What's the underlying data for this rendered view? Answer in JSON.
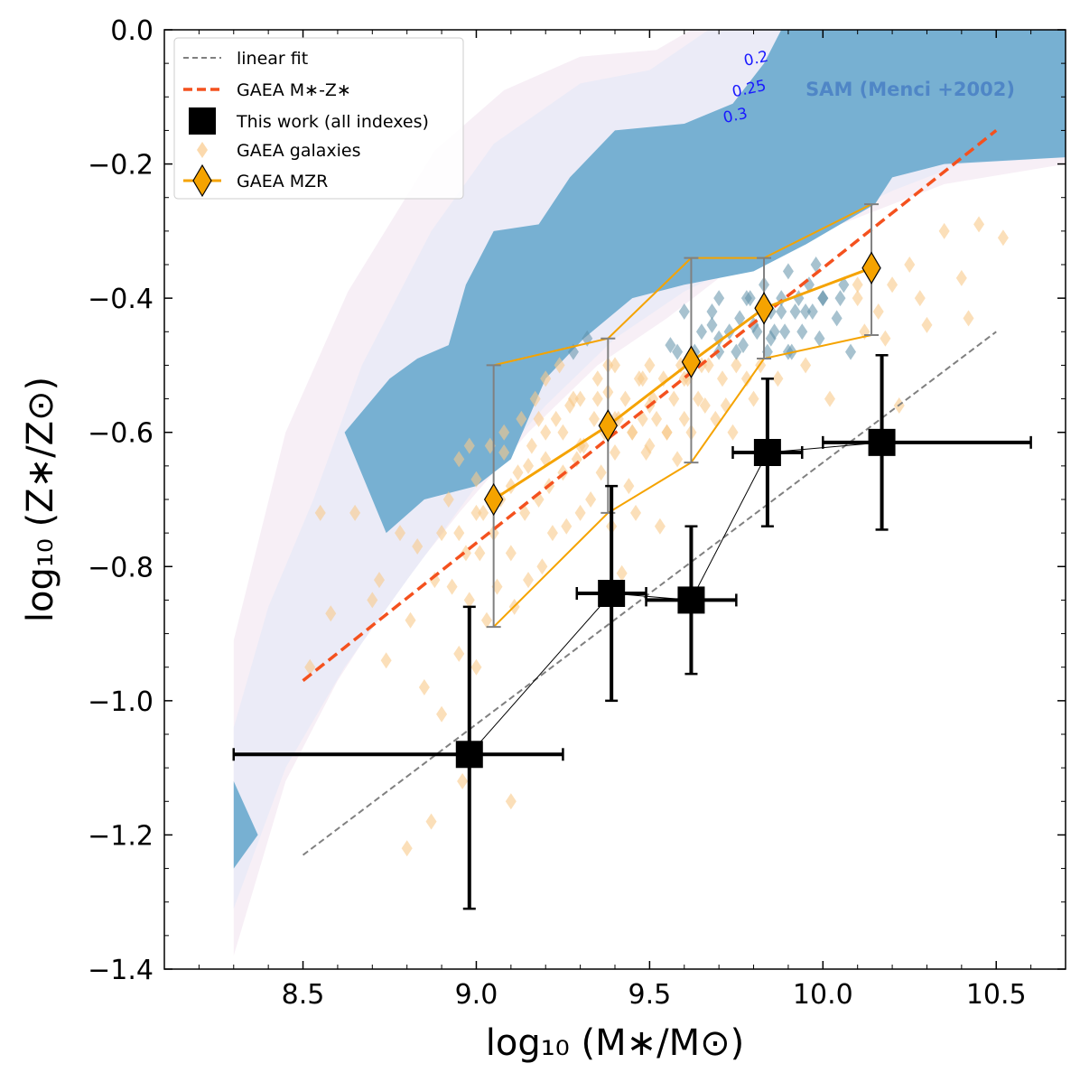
{
  "chart_data": {
    "type": "scatter",
    "xlabel": "log₁₀ (M∗/M⊙)",
    "ylabel": "log₁₀ (Z∗/Z⊙)",
    "xlim": [
      8.1,
      10.7
    ],
    "ylim": [
      -1.4,
      0.0
    ],
    "x_ticks": [
      8.5,
      9.0,
      9.5,
      10.0,
      10.5
    ],
    "x_tick_labels": [
      "8.5",
      "9.0",
      "9.5",
      "10.0",
      "10.5"
    ],
    "y_ticks": [
      0.0,
      -0.2,
      -0.4,
      -0.6,
      -0.8,
      -1.0,
      -1.2,
      -1.4
    ],
    "y_tick_labels": [
      "0.0",
      "−0.2",
      "−0.4",
      "−0.6",
      "−0.8",
      "−1.0",
      "−1.2",
      "−1.4"
    ],
    "legend": {
      "position": "top-left",
      "entries": [
        "linear fit",
        "GAEA M∗-Z∗",
        "This work (all indexes)",
        "GAEA galaxies",
        "GAEA MZR"
      ]
    },
    "sam_label": "SAM (Menci +2002)",
    "contour_labels": [
      {
        "text": "0.2",
        "x": 9.81,
        "y": -0.05
      },
      {
        "text": "0.25",
        "x": 9.79,
        "y": -0.095
      },
      {
        "text": "0.3",
        "x": 9.75,
        "y": -0.135
      }
    ],
    "sam_regions": [
      {
        "level": "outer",
        "color": "#f7eff6",
        "points": [
          [
            8.3,
            -1.38
          ],
          [
            8.3,
            -0.91
          ],
          [
            8.45,
            -0.6
          ],
          [
            8.63,
            -0.39
          ],
          [
            8.88,
            -0.18
          ],
          [
            9.08,
            -0.09
          ],
          [
            9.3,
            -0.04
          ],
          [
            9.52,
            -0.03
          ],
          [
            9.62,
            0.0
          ],
          [
            10.7,
            0.0
          ],
          [
            10.7,
            -0.2
          ],
          [
            10.35,
            -0.23
          ],
          [
            10.15,
            -0.27
          ],
          [
            9.95,
            -0.31
          ],
          [
            9.7,
            -0.37
          ],
          [
            9.55,
            -0.43
          ],
          [
            9.35,
            -0.5
          ],
          [
            9.15,
            -0.6
          ],
          [
            8.95,
            -0.72
          ],
          [
            8.75,
            -0.85
          ],
          [
            8.6,
            -0.97
          ],
          [
            8.45,
            -1.12
          ]
        ]
      },
      {
        "level": "middle",
        "color": "#ebebf7",
        "points": [
          [
            8.3,
            -1.31
          ],
          [
            8.3,
            -1.04
          ],
          [
            8.4,
            -0.86
          ],
          [
            8.53,
            -0.7
          ],
          [
            8.67,
            -0.5
          ],
          [
            8.87,
            -0.3
          ],
          [
            9.05,
            -0.17
          ],
          [
            9.3,
            -0.08
          ],
          [
            9.5,
            -0.06
          ],
          [
            9.67,
            0.0
          ],
          [
            10.7,
            0.0
          ],
          [
            10.7,
            -0.19
          ],
          [
            10.4,
            -0.2
          ],
          [
            10.2,
            -0.24
          ],
          [
            10.0,
            -0.29
          ],
          [
            9.8,
            -0.34
          ],
          [
            9.6,
            -0.39
          ],
          [
            9.4,
            -0.46
          ],
          [
            9.2,
            -0.56
          ],
          [
            9.0,
            -0.68
          ],
          [
            8.8,
            -0.82
          ],
          [
            8.62,
            -0.95
          ],
          [
            8.45,
            -1.1
          ]
        ]
      },
      {
        "level": "core",
        "color": "#77b0d2",
        "points": [
          [
            8.62,
            -0.6
          ],
          [
            8.75,
            -0.52
          ],
          [
            8.83,
            -0.49
          ],
          [
            8.92,
            -0.47
          ],
          [
            8.97,
            -0.38
          ],
          [
            9.05,
            -0.3
          ],
          [
            9.18,
            -0.29
          ],
          [
            9.27,
            -0.22
          ],
          [
            9.4,
            -0.15
          ],
          [
            9.6,
            -0.14
          ],
          [
            9.74,
            -0.11
          ],
          [
            9.83,
            -0.05
          ],
          [
            9.88,
            0.0
          ],
          [
            10.7,
            0.0
          ],
          [
            10.7,
            -0.19
          ],
          [
            10.35,
            -0.2
          ],
          [
            10.2,
            -0.22
          ],
          [
            10.15,
            -0.26
          ],
          [
            10.05,
            -0.29
          ],
          [
            9.95,
            -0.32
          ],
          [
            9.8,
            -0.36
          ],
          [
            9.6,
            -0.38
          ],
          [
            9.45,
            -0.4
          ],
          [
            9.31,
            -0.46
          ],
          [
            9.2,
            -0.52
          ],
          [
            9.1,
            -0.64
          ],
          [
            9.0,
            -0.68
          ],
          [
            8.85,
            -0.7
          ],
          [
            8.74,
            -0.75
          ]
        ]
      },
      {
        "level": "core-small",
        "color": "#77b0d2",
        "points": [
          [
            8.3,
            -1.25
          ],
          [
            8.3,
            -1.12
          ],
          [
            8.37,
            -1.2
          ]
        ]
      }
    ],
    "linear_fit": {
      "x": [
        8.5,
        10.5
      ],
      "y": [
        -1.23,
        -0.45
      ]
    },
    "gaea_mz_line": {
      "x": [
        8.5,
        10.5
      ],
      "y": [
        -0.97,
        -0.15
      ]
    },
    "this_work": [
      {
        "x": 8.98,
        "y": -1.08,
        "xerr": [
          0.68,
          0.27
        ],
        "yerr": [
          0.23,
          0.22
        ]
      },
      {
        "x": 9.39,
        "y": -0.84,
        "xerr": [
          0.1,
          0.1
        ],
        "yerr": [
          0.16,
          0.16
        ]
      },
      {
        "x": 9.62,
        "y": -0.85,
        "xerr": [
          0.13,
          0.13
        ],
        "yerr": [
          0.11,
          0.11
        ]
      },
      {
        "x": 9.84,
        "y": -0.63,
        "xerr": [
          0.1,
          0.1
        ],
        "yerr": [
          0.11,
          0.11
        ]
      },
      {
        "x": 10.17,
        "y": -0.615,
        "xerr": [
          0.17,
          0.43
        ],
        "yerr": [
          0.13,
          0.13
        ]
      }
    ],
    "gaea_mzr": {
      "x": [
        9.05,
        9.38,
        9.62,
        9.83,
        10.14
      ],
      "y": [
        -0.7,
        -0.59,
        -0.495,
        -0.415,
        -0.355
      ],
      "upper": [
        -0.5,
        -0.46,
        -0.34,
        -0.34,
        -0.26
      ],
      "lower": [
        -0.89,
        -0.72,
        -0.645,
        -0.49,
        -0.455
      ]
    },
    "gaea_galaxies": {
      "x": [
        8.52,
        8.55,
        8.58,
        8.65,
        8.7,
        8.72,
        8.74,
        8.78,
        8.8,
        8.81,
        8.83,
        8.85,
        8.87,
        8.88,
        8.9,
        8.9,
        8.92,
        8.93,
        8.95,
        8.95,
        8.96,
        8.97,
        8.98,
        9.0,
        9.0,
        9.01,
        9.02,
        9.03,
        9.04,
        9.05,
        9.06,
        9.07,
        9.08,
        9.1,
        9.1,
        9.11,
        9.12,
        9.13,
        9.14,
        9.15,
        9.16,
        9.17,
        9.18,
        9.19,
        9.2,
        9.2,
        9.21,
        9.22,
        9.23,
        9.24,
        9.25,
        9.26,
        9.27,
        9.28,
        9.29,
        9.3,
        9.3,
        9.31,
        9.32,
        9.33,
        9.34,
        9.35,
        9.36,
        9.37,
        9.38,
        9.39,
        9.4,
        9.4,
        9.41,
        9.42,
        9.43,
        9.44,
        9.45,
        9.46,
        9.47,
        9.48,
        9.49,
        9.5,
        9.5,
        9.51,
        9.52,
        9.53,
        9.54,
        9.55,
        9.56,
        9.57,
        9.58,
        9.59,
        9.6,
        9.6,
        9.61,
        9.62,
        9.63,
        9.64,
        9.65,
        9.66,
        9.67,
        9.68,
        9.69,
        9.7,
        9.7,
        9.71,
        9.72,
        9.73,
        9.74,
        9.75,
        9.76,
        9.77,
        9.78,
        9.79,
        9.8,
        9.81,
        9.82,
        9.83,
        9.84,
        9.85,
        9.86,
        9.87,
        9.88,
        9.89,
        9.9,
        9.91,
        9.92,
        9.93,
        9.94,
        9.95,
        9.96,
        9.97,
        9.98,
        9.99,
        10.0,
        10.02,
        10.04,
        10.06,
        10.08,
        10.1,
        10.12,
        10.14,
        10.16,
        10.18,
        10.2,
        10.22,
        10.25,
        10.28,
        10.3,
        10.35,
        10.4,
        10.42,
        10.45,
        10.52,
        8.95,
        9.05,
        9.15,
        9.25,
        9.35,
        9.45,
        9.55,
        9.65,
        9.75,
        9.85,
        9.95,
        10.05,
        9.0,
        9.1,
        9.2,
        9.3,
        9.4,
        9.5,
        9.6,
        9.7,
        9.8,
        9.9,
        10.0,
        10.1,
        8.98,
        9.08,
        9.18,
        9.28,
        9.38,
        9.48,
        9.58,
        9.68,
        9.78,
        9.88
      ],
      "y": [
        -0.95,
        -0.72,
        -0.87,
        -0.72,
        -0.85,
        -0.82,
        -0.94,
        -0.75,
        -1.22,
        -0.88,
        -0.77,
        -0.98,
        -1.18,
        -0.82,
        -1.02,
        -0.75,
        -0.7,
        -0.83,
        -0.93,
        -0.64,
        -1.12,
        -0.78,
        -0.85,
        -0.67,
        -0.95,
        -0.78,
        -0.72,
        -0.88,
        -0.62,
        -0.75,
        -0.83,
        -0.7,
        -0.63,
        -0.78,
        -1.15,
        -0.86,
        -0.66,
        -0.58,
        -0.72,
        -0.82,
        -0.62,
        -0.55,
        -0.7,
        -0.8,
        -0.6,
        -0.52,
        -0.68,
        -0.75,
        -0.58,
        -0.5,
        -0.66,
        -0.74,
        -0.56,
        -0.48,
        -0.64,
        -0.72,
        -0.55,
        -0.62,
        -0.46,
        -0.7,
        -0.58,
        -0.52,
        -0.66,
        -0.6,
        -0.54,
        -0.74,
        -0.5,
        -0.63,
        -0.58,
        -0.81,
        -0.55,
        -0.68,
        -0.6,
        -0.72,
        -0.52,
        -0.58,
        -0.63,
        -0.5,
        -0.62,
        -0.55,
        -0.58,
        -0.74,
        -0.52,
        -0.6,
        -0.47,
        -0.55,
        -0.64,
        -0.5,
        -0.58,
        -0.42,
        -0.52,
        -0.6,
        -0.48,
        -0.55,
        -0.45,
        -0.56,
        -0.5,
        -0.42,
        -0.58,
        -0.48,
        -0.4,
        -0.52,
        -0.56,
        -0.45,
        -0.6,
        -0.5,
        -0.43,
        -0.47,
        -0.52,
        -0.4,
        -0.55,
        -0.45,
        -0.5,
        -0.38,
        -0.48,
        -0.42,
        -0.45,
        -0.52,
        -0.4,
        -0.45,
        -0.36,
        -0.48,
        -0.42,
        -0.4,
        -0.45,
        -0.5,
        -0.38,
        -0.42,
        -0.35,
        -0.46,
        -0.4,
        -0.55,
        -0.43,
        -0.38,
        -0.48,
        -0.4,
        -0.45,
        -0.36,
        -0.42,
        -0.46,
        -0.38,
        -0.56,
        -0.35,
        -0.4,
        -0.44,
        -0.3,
        -0.37,
        -0.43,
        -0.29,
        -0.31,
        -0.75,
        -0.7,
        -0.65,
        -0.6,
        -0.55,
        -0.6,
        -0.6,
        -0.5,
        -0.48,
        -0.46,
        -0.42,
        -0.4,
        -0.72,
        -0.68,
        -0.64,
        -0.62,
        -0.58,
        -0.56,
        -0.52,
        -0.46,
        -0.44,
        -0.48,
        -0.4,
        -0.38,
        -0.62,
        -0.6,
        -0.58,
        -0.55,
        -0.5,
        -0.52,
        -0.48,
        -0.44,
        -0.4,
        -0.42
      ]
    }
  }
}
